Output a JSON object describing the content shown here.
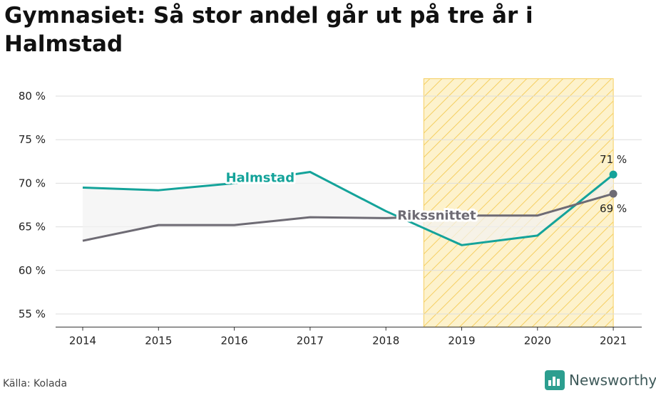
{
  "title": "Gymnasiet: Så stor andel går ut på tre år i Halmstad",
  "source": "Källa: Kolada",
  "brand": "Newsworthy",
  "colors": {
    "halmstad": "#14a39a",
    "riksnittet": "#6e6b74",
    "highlight_fill": "#fdf2cc",
    "highlight_stroke": "#f5cf62",
    "grid": "#dddddd"
  },
  "chart_data": {
    "type": "line",
    "title": "Gymnasiet: Så stor andel går ut på tre år i Halmstad",
    "x": [
      "2014",
      "2015",
      "2016",
      "2017",
      "2018",
      "2019",
      "2020",
      "2021"
    ],
    "yticks": [
      55,
      60,
      65,
      70,
      75,
      80
    ],
    "ytick_labels": [
      "55 %",
      "60 %",
      "65 %",
      "70 %",
      "75 %",
      "80 %"
    ],
    "ylim": [
      53.5,
      82
    ],
    "grid": true,
    "highlight_range": [
      "2019",
      "2021"
    ],
    "series": [
      {
        "name": "Halmstad",
        "values": [
          69.5,
          69.2,
          70.0,
          71.3,
          66.8,
          62.9,
          64.0,
          71.0
        ],
        "end_label": "71 %"
      },
      {
        "name": "Rikssnittet",
        "values": [
          63.4,
          65.2,
          65.2,
          66.1,
          66.0,
          66.3,
          66.3,
          68.8
        ],
        "end_label": "69 %"
      }
    ]
  }
}
